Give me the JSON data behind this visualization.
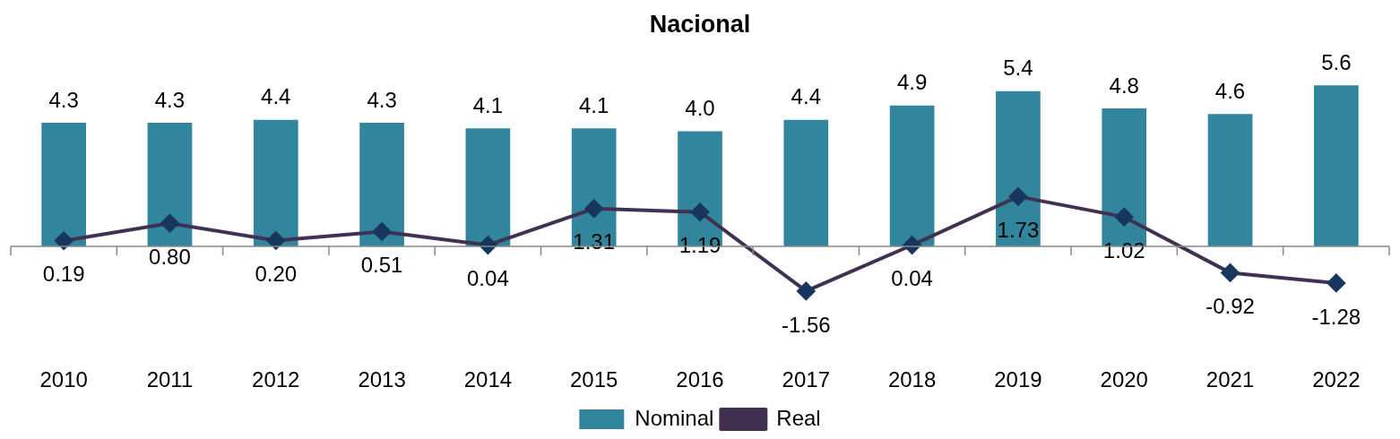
{
  "chart_data": {
    "type": "bar",
    "title": "Nacional",
    "categories": [
      "2010",
      "2011",
      "2012",
      "2013",
      "2014",
      "2015",
      "2016",
      "2017",
      "2018",
      "2019",
      "2020",
      "2021",
      "2022"
    ],
    "series": [
      {
        "name": "Nominal",
        "color": "#31859c",
        "values": [
          4.3,
          4.3,
          4.4,
          4.3,
          4.1,
          4.1,
          4.0,
          4.4,
          4.9,
          5.4,
          4.8,
          4.6,
          5.6
        ],
        "value_labels": [
          "4.3",
          "4.3",
          "4.4",
          "4.3",
          "4.1",
          "4.1",
          "4.0",
          "4.4",
          "4.9",
          "5.4",
          "4.8",
          "4.6",
          "5.6"
        ]
      },
      {
        "name": "Real",
        "type": "line",
        "color": "#403152",
        "marker": "diamond",
        "values": [
          0.19,
          0.8,
          0.2,
          0.51,
          0.04,
          1.31,
          1.19,
          -1.56,
          0.04,
          1.73,
          1.02,
          -0.92,
          -1.28
        ],
        "value_labels": [
          "0.19",
          "0.80",
          "0.20",
          "0.51",
          "0.04",
          "1.31",
          "1.19",
          "-1.56",
          "0.04",
          "1.73",
          "1.02",
          "-0.92",
          "-1.28"
        ]
      }
    ],
    "legend": "bottom",
    "grid": false
  }
}
